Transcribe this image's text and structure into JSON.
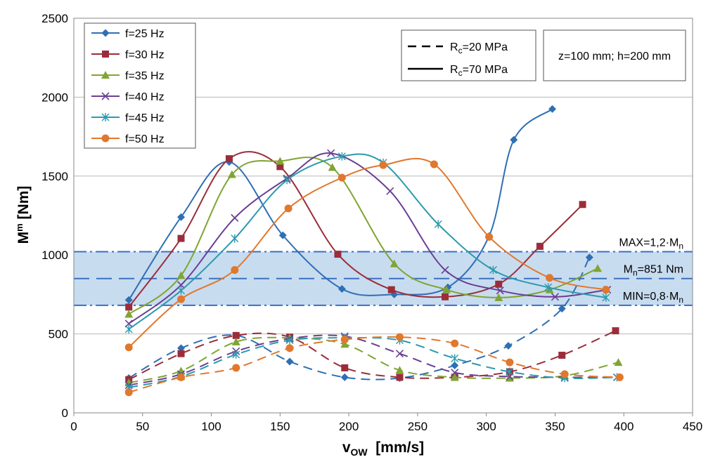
{
  "chart_data": {
    "type": "line",
    "xlabel": "v",
    "xlabel_sub": "OW",
    "xlabel_unit": "[mm/s]",
    "ylabel": "M",
    "ylabel_sup": "m",
    "ylabel_unit": "[Nm]",
    "xlim": [
      0,
      450
    ],
    "ylim": [
      0,
      2500
    ],
    "xticks": [
      "0",
      "50",
      "100",
      "150",
      "200",
      "250",
      "300",
      "350",
      "400",
      "450"
    ],
    "yticks": [
      "0",
      "500",
      "1000",
      "1500",
      "2000",
      "2500"
    ],
    "grid": "horizontal",
    "legend": {
      "placement": "top-left",
      "entries": [
        "f=25 Hz",
        "f=30 Hz",
        "f=35 Hz",
        "f=40 Hz",
        "f=45 Hz",
        "f=50 Hz"
      ]
    },
    "line_style_legend": {
      "dashed": {
        "prefix": "R",
        "sub": "c",
        "rest": "=20 MPa"
      },
      "solid": {
        "prefix": "R",
        "sub": "c",
        "rest": "=70 MPa"
      }
    },
    "note": "z=100 mm; h=200 mm",
    "band": {
      "max": {
        "value": 1021,
        "label": "MAX=1,2·M",
        "sub": "n"
      },
      "nominal": {
        "value": 851,
        "label": "M",
        "sub": "n",
        "rest": "=851 Nm"
      },
      "min": {
        "value": 681,
        "label": "MIN=0,8·M",
        "sub": "n"
      },
      "fill": "#c8dcf0",
      "line_color": "#3a6fc0"
    },
    "series": [
      {
        "name": "f=25 Hz",
        "color": "#2e6fb5",
        "marker": "diamond",
        "rc70": {
          "x": [
            40,
            78,
            113,
            152,
            195,
            233,
            272,
            302,
            320,
            348
          ],
          "y": [
            715,
            1240,
            1590,
            1125,
            785,
            750,
            795,
            1120,
            1730,
            1925
          ]
        },
        "rc20": {
          "x": [
            40,
            78,
            118,
            157,
            197,
            237,
            277,
            316,
            355,
            375
          ],
          "y": [
            220,
            410,
            490,
            325,
            225,
            220,
            300,
            425,
            660,
            985
          ]
        }
      },
      {
        "name": "f=30 Hz",
        "color": "#9b2d3a",
        "marker": "square",
        "rc70": {
          "x": [
            40,
            78,
            113,
            150,
            192,
            231,
            270,
            309,
            339,
            370
          ],
          "y": [
            670,
            1105,
            1610,
            1560,
            1005,
            780,
            735,
            815,
            1055,
            1320
          ]
        },
        "rc20": {
          "x": [
            40,
            78,
            118,
            157,
            197,
            237,
            277,
            317,
            355,
            394
          ],
          "y": [
            210,
            375,
            490,
            480,
            285,
            225,
            225,
            260,
            365,
            520
          ]
        }
      },
      {
        "name": "f=35 Hz",
        "color": "#7fa532",
        "marker": "triangle",
        "rc70": {
          "x": [
            40,
            78,
            115,
            150,
            188,
            233,
            271,
            309,
            346,
            381
          ],
          "y": [
            625,
            870,
            1510,
            1595,
            1555,
            945,
            780,
            730,
            780,
            915
          ]
        },
        "rc20": {
          "x": [
            40,
            78,
            118,
            157,
            197,
            237,
            277,
            317,
            357,
            396
          ],
          "y": [
            190,
            265,
            450,
            475,
            435,
            270,
            225,
            220,
            235,
            320
          ]
        }
      },
      {
        "name": "f=40 Hz",
        "color": "#6a3f93",
        "marker": "x",
        "rc70": {
          "x": [
            40,
            78,
            117,
            155,
            187,
            230,
            270,
            310,
            350,
            388
          ],
          "y": [
            565,
            810,
            1235,
            1485,
            1645,
            1405,
            905,
            775,
            735,
            780
          ]
        },
        "rc20": {
          "x": [
            40,
            78,
            118,
            157,
            197,
            237,
            277,
            317,
            357,
            395
          ],
          "y": [
            175,
            245,
            390,
            470,
            485,
            375,
            255,
            230,
            225,
            225
          ]
        }
      },
      {
        "name": "f=45 Hz",
        "color": "#2b9aae",
        "marker": "star",
        "rc70": {
          "x": [
            40,
            78,
            117,
            155,
            195,
            225,
            265,
            305,
            345,
            387
          ],
          "y": [
            530,
            775,
            1105,
            1475,
            1625,
            1585,
            1195,
            905,
            795,
            730
          ]
        },
        "rc20": {
          "x": [
            40,
            78,
            118,
            157,
            197,
            237,
            277,
            317,
            357,
            395
          ],
          "y": [
            160,
            230,
            370,
            460,
            475,
            460,
            345,
            260,
            220,
            225
          ]
        }
      },
      {
        "name": "f=50 Hz",
        "color": "#e0782d",
        "marker": "circle",
        "rc70": {
          "x": [
            40,
            78,
            117,
            156,
            195,
            225,
            262,
            302,
            346,
            387
          ],
          "y": [
            415,
            720,
            905,
            1295,
            1490,
            1570,
            1575,
            1115,
            855,
            780
          ]
        },
        "rc20": {
          "x": [
            40,
            78,
            118,
            157,
            197,
            237,
            277,
            317,
            357,
            397
          ],
          "y": [
            130,
            225,
            285,
            410,
            465,
            480,
            440,
            320,
            245,
            225
          ]
        }
      }
    ]
  }
}
